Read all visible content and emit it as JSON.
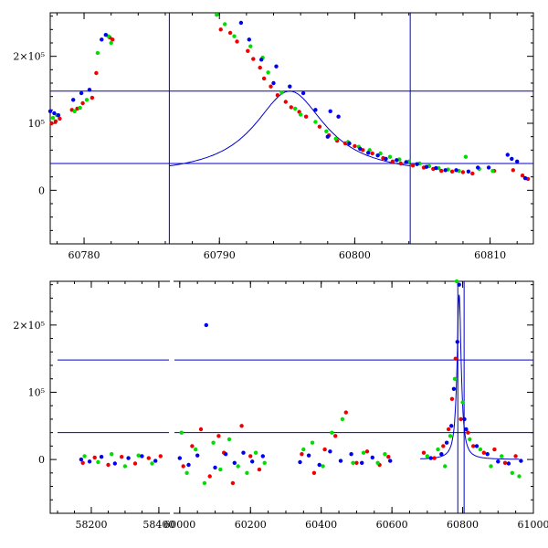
{
  "chart_data": [
    {
      "type": "scatter",
      "title": "",
      "xlabel": "",
      "ylabel": "",
      "xlim": [
        60777.5,
        60813.2
      ],
      "ylim": [
        -80000,
        265000
      ],
      "x_ticks": [
        60780,
        60790,
        60800,
        60810
      ],
      "x_tick_labels": [
        "60780",
        "60790",
        "60800",
        "60810"
      ],
      "y_ticks": [
        0,
        100000,
        200000
      ],
      "y_tick_labels": [
        "0",
        "10⁵",
        "2×10⁵"
      ],
      "hlines": [
        40000,
        148000
      ],
      "vlines": [
        60786.3,
        60804.1
      ],
      "model_curve": {
        "name": "model",
        "color": "#0000cc",
        "x_range": [
          60786.3,
          60804.1
        ],
        "peak_x": 60795.2,
        "peak_y": 148000,
        "baseline": 22000
      },
      "series": [
        {
          "name": "red",
          "color": "#ee0000",
          "x": [
            60777.6,
            60777.9,
            60778.2,
            60779.1,
            60779.5,
            60779.9,
            60780.6,
            60780.9,
            60781.9,
            60782.1,
            60790.1,
            60790.8,
            60791.3,
            60792.1,
            60792.5,
            60793.0,
            60793.3,
            60793.8,
            60794.3,
            60794.9,
            60795.3,
            60795.9,
            60796.4,
            60797.4,
            60798.1,
            60798.7,
            60799.3,
            60800.0,
            60800.6,
            60801.3,
            60802.1,
            60802.8,
            60803.4,
            60804.3,
            60805.1,
            60805.8,
            60806.4,
            60807.2,
            60808.0,
            60808.7,
            60810.3,
            60811.7,
            60812.4,
            60812.8
          ],
          "y": [
            100000,
            103000,
            107000,
            120000,
            122000,
            130000,
            138000,
            175000,
            228000,
            225000,
            240000,
            235000,
            222000,
            208000,
            196000,
            183000,
            167000,
            155000,
            142000,
            132000,
            124000,
            117000,
            110000,
            95000,
            82000,
            74000,
            70000,
            66000,
            60000,
            55000,
            48000,
            43000,
            40000,
            37000,
            34000,
            32000,
            29000,
            28000,
            27000,
            25000,
            29000,
            30000,
            22000,
            17000
          ]
        },
        {
          "name": "green",
          "color": "#00dd00",
          "x": [
            60777.7,
            60778.0,
            60779.3,
            60779.7,
            60780.2,
            60781.0,
            60781.8,
            60782.0,
            60789.8,
            60790.4,
            60791.1,
            60792.3,
            60793.2,
            60793.6,
            60794.6,
            60795.6,
            60796.0,
            60797.1,
            60797.9,
            60798.6,
            60799.5,
            60800.3,
            60801.1,
            60801.9,
            60802.6,
            60803.3,
            60804.0,
            60804.8,
            60805.5,
            60806.2,
            60806.9,
            60807.7,
            60808.2,
            60809.2,
            60810.2
          ],
          "y": [
            108000,
            112000,
            118000,
            123000,
            135000,
            205000,
            230000,
            220000,
            262000,
            248000,
            230000,
            215000,
            198000,
            176000,
            146000,
            122000,
            113000,
            102000,
            88000,
            77000,
            72000,
            65000,
            60000,
            55000,
            50000,
            46000,
            43000,
            40000,
            36000,
            33000,
            31000,
            29000,
            50000,
            32000,
            29000
          ]
        },
        {
          "name": "blue",
          "color": "#0000ee",
          "x": [
            60777.5,
            60777.8,
            60778.1,
            60779.2,
            60779.8,
            60780.4,
            60781.3,
            60781.6,
            60791.6,
            60792.2,
            60793.1,
            60794.0,
            60794.2,
            60795.2,
            60796.2,
            60797.1,
            60798.0,
            60798.2,
            60798.8,
            60799.6,
            60800.4,
            60801.0,
            60801.7,
            60802.3,
            60803.1,
            60803.8,
            60804.6,
            60805.3,
            60806.0,
            60806.7,
            60807.5,
            60808.4,
            60809.1,
            60809.9,
            60811.3,
            60811.6,
            60812.0,
            60812.6
          ],
          "y": [
            118000,
            115000,
            112000,
            135000,
            145000,
            150000,
            225000,
            232000,
            250000,
            225000,
            195000,
            160000,
            185000,
            155000,
            145000,
            120000,
            80000,
            118000,
            110000,
            70000,
            62000,
            56000,
            52000,
            47000,
            45000,
            42000,
            39000,
            35000,
            33000,
            30000,
            30000,
            28000,
            34000,
            34000,
            53000,
            47000,
            43000,
            18000
          ]
        }
      ]
    },
    {
      "type": "scatter",
      "title": "",
      "xlabel": "",
      "ylabel": "",
      "xlim": [
        58100,
        61000
      ],
      "ylim": [
        -80000,
        265000
      ],
      "x_breaks": [
        [
          58440,
          59990
        ]
      ],
      "x_ticks": [
        58200,
        58400,
        60000,
        60200,
        60400,
        60600,
        60800,
        61000
      ],
      "x_tick_labels": [
        "58200",
        "58400",
        "60000",
        "60200",
        "60400",
        "60600",
        "60800",
        "61000"
      ],
      "y_ticks": [
        0,
        100000,
        200000
      ],
      "y_tick_labels": [
        "0",
        "10⁵",
        "2×10⁵"
      ],
      "hlines": [
        40000,
        148000
      ],
      "vlines": [
        60786.3,
        60804.1
      ],
      "model_curve": {
        "name": "model",
        "color": "#0000cc",
        "peak_x": 60790,
        "peak_y": 245000,
        "baseline": 0
      },
      "series": [
        {
          "name": "red",
          "color": "#ee0000",
          "x": [
            58175,
            58210,
            58250,
            58290,
            58330,
            58370,
            58405,
            60010,
            60035,
            60060,
            60085,
            60110,
            60125,
            60150,
            60175,
            60200,
            60225,
            60345,
            60380,
            60410,
            60440,
            60470,
            60500,
            60530,
            60565,
            60590,
            60690,
            60720,
            60745,
            60760,
            60770,
            60780,
            60795,
            60815,
            60830,
            60860,
            60890,
            60920,
            60950
          ],
          "y": [
            -5000,
            3000,
            -8000,
            4000,
            -6000,
            2000,
            5000,
            -10000,
            20000,
            45000,
            -25000,
            35000,
            10000,
            -35000,
            50000,
            5000,
            -15000,
            8000,
            -20000,
            15000,
            35000,
            70000,
            -5000,
            12000,
            -8000,
            4000,
            10000,
            2000,
            20000,
            45000,
            90000,
            150000,
            60000,
            40000,
            20000,
            10000,
            15000,
            -5000,
            5000
          ]
        },
        {
          "name": "green",
          "color": "#00dd00",
          "x": [
            58180,
            58220,
            58260,
            58300,
            58340,
            58380,
            60005,
            60020,
            60045,
            60070,
            60095,
            60115,
            60140,
            60165,
            60190,
            60215,
            60240,
            60350,
            60375,
            60405,
            60430,
            60460,
            60490,
            60520,
            60560,
            60580,
            60700,
            60730,
            60750,
            60765,
            60778,
            60783,
            60800,
            60820,
            60850,
            60880,
            60910,
            60940,
            60960
          ],
          "y": [
            5000,
            -4000,
            8000,
            -10000,
            6000,
            -6000,
            40000,
            -20000,
            15000,
            -35000,
            25000,
            -15000,
            30000,
            -10000,
            -20000,
            10000,
            -5000,
            15000,
            25000,
            -10000,
            40000,
            60000,
            -5000,
            10000,
            -5000,
            8000,
            5000,
            15000,
            -10000,
            35000,
            120000,
            265000,
            85000,
            30000,
            15000,
            -10000,
            5000,
            -20000,
            -25000
          ]
        },
        {
          "name": "blue",
          "color": "#0000ee",
          "x": [
            58170,
            58195,
            58230,
            58270,
            58310,
            58350,
            58390,
            60000,
            60025,
            60050,
            60075,
            60100,
            60130,
            60155,
            60180,
            60205,
            60235,
            60340,
            60365,
            60395,
            60425,
            60455,
            60485,
            60515,
            60545,
            60595,
            60710,
            60740,
            60755,
            60768,
            60775,
            60785,
            60790,
            60805,
            60810,
            60840,
            60870,
            60900,
            60930,
            60965
          ],
          "y": [
            0,
            -3000,
            4000,
            -6000,
            2000,
            5000,
            -2000,
            2000,
            -8000,
            6000,
            200000,
            -12000,
            8000,
            -5000,
            10000,
            -3000,
            5000,
            -4000,
            6000,
            -8000,
            12000,
            -2000,
            8000,
            -5000,
            3000,
            -2000,
            2000,
            8000,
            25000,
            50000,
            105000,
            175000,
            260000,
            60000,
            45000,
            20000,
            8000,
            -3000,
            -6000,
            -2000
          ]
        }
      ]
    }
  ]
}
